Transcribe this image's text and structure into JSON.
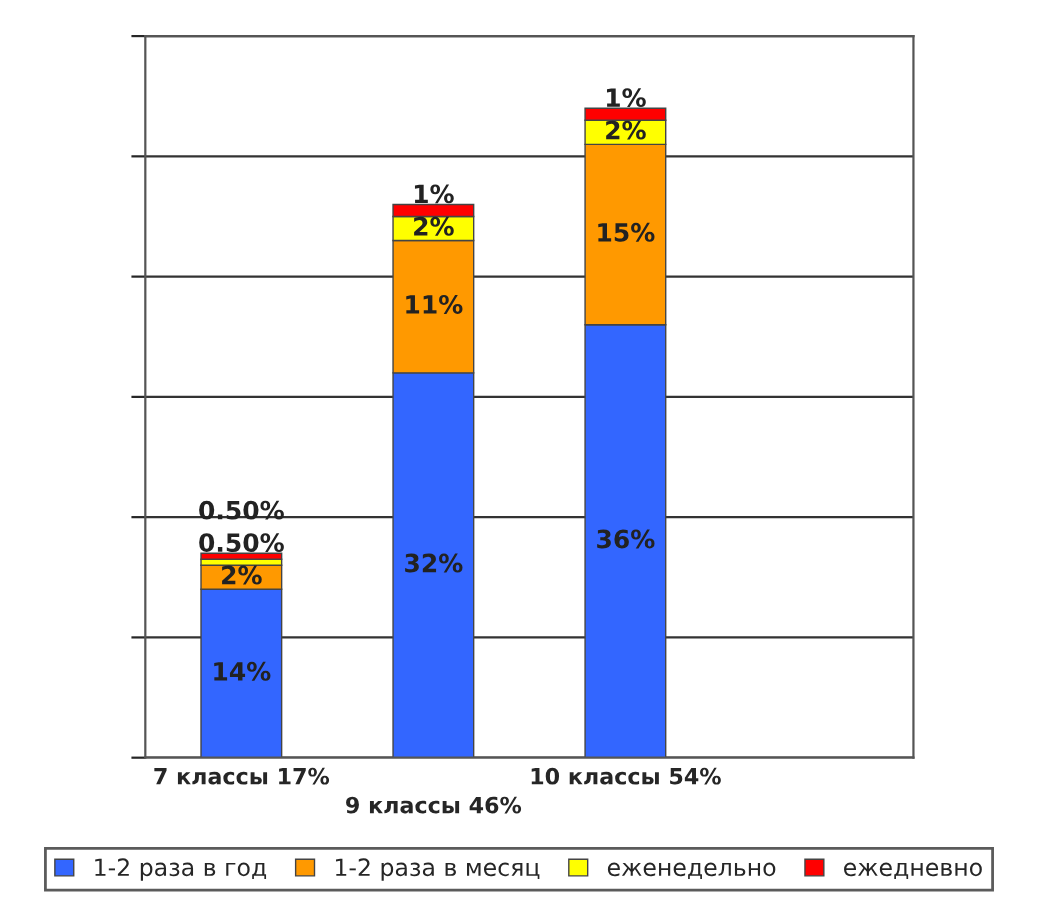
{
  "chart_data": {
    "type": "bar",
    "stacked": true,
    "categories": [
      "7 классы 17%",
      "9 классы 46%",
      "10 классы 54%"
    ],
    "series": [
      {
        "name": "1-2 раза в год",
        "color": "#3366ff",
        "values": [
          14,
          32,
          36
        ],
        "value_labels": [
          "14%",
          "32%",
          "36%"
        ]
      },
      {
        "name": "1-2 раза в месяц",
        "color": "#ff9900",
        "values": [
          2,
          11,
          15
        ],
        "value_labels": [
          "2%",
          "11%",
          "15%"
        ]
      },
      {
        "name": "еженедельно",
        "color": "#ffff00",
        "values": [
          0.5,
          2,
          2
        ],
        "value_labels": [
          "0.50%",
          "2%",
          "2%"
        ]
      },
      {
        "name": "ежедневно",
        "color": "#ff0000",
        "values": [
          0.5,
          1,
          1
        ],
        "value_labels": [
          "0.50%",
          "1%",
          "1%"
        ]
      }
    ],
    "ylim": [
      0,
      60
    ],
    "yticks": [
      {
        "value": 0,
        "label": null
      },
      {
        "value": 10,
        "label": null
      },
      {
        "value": 20,
        "label": null
      },
      {
        "value": 30,
        "label": null
      },
      {
        "value": 40,
        "label": null
      },
      {
        "value": 50,
        "label": null
      },
      {
        "value": 60,
        "label": null
      }
    ],
    "tick_labels": "x",
    "grid": "y",
    "legend": "bottom"
  }
}
